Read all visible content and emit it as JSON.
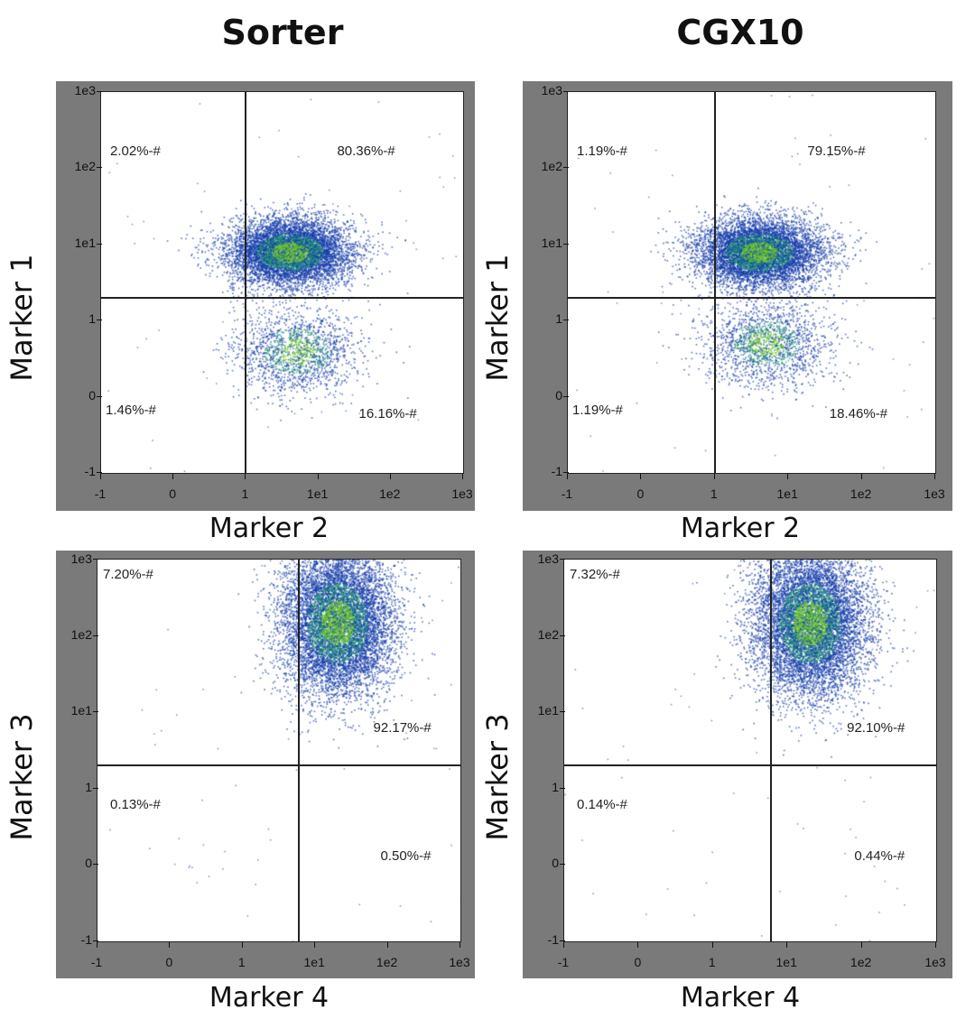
{
  "columns": [
    "Sorter",
    "CGX10"
  ],
  "chart_data": [
    {
      "type": "scatter",
      "instrument": "Sorter",
      "xlabel": "Marker 2",
      "ylabel": "Marker 1",
      "x_ticks": [
        "-1",
        "0",
        "1",
        "1e1",
        "1e2",
        "1e3"
      ],
      "y_ticks": [
        "-1",
        "0",
        "1",
        "1e1",
        "1e2",
        "1e3"
      ],
      "gate": {
        "x": 1,
        "y": 2
      },
      "quadrants": {
        "upper_left": "2.02%-#",
        "upper_right": "80.36%-#",
        "lower_left": "1.46%-#",
        "lower_right": "16.16%-#"
      },
      "clusters": [
        {
          "x": 4,
          "y": 8,
          "weight": 0.8
        },
        {
          "x": 5,
          "y": 0.6,
          "weight": 0.18
        }
      ]
    },
    {
      "type": "scatter",
      "instrument": "CGX10",
      "xlabel": "Marker 2",
      "ylabel": "Marker 1",
      "x_ticks": [
        "-1",
        "0",
        "1",
        "1e1",
        "1e2",
        "1e3"
      ],
      "y_ticks": [
        "-1",
        "0",
        "1",
        "1e1",
        "1e2",
        "1e3"
      ],
      "gate": {
        "x": 1,
        "y": 2
      },
      "quadrants": {
        "upper_left": "1.19%-#",
        "upper_right": "79.15%-#",
        "lower_left": "1.19%-#",
        "lower_right": "18.46%-#"
      },
      "clusters": [
        {
          "x": 4,
          "y": 8,
          "weight": 0.79
        },
        {
          "x": 5,
          "y": 0.7,
          "weight": 0.19
        }
      ]
    },
    {
      "type": "scatter",
      "instrument": "Sorter",
      "xlabel": "Marker 4",
      "ylabel": "Marker 3",
      "x_ticks": [
        "-1",
        "0",
        "1",
        "1e1",
        "1e2",
        "1e3"
      ],
      "y_ticks": [
        "-1",
        "0",
        "1",
        "1e1",
        "1e2",
        "1e3"
      ],
      "gate": {
        "x": 6,
        "y": 2
      },
      "quadrants": {
        "upper_left": "7.20%-#",
        "upper_right": "92.17%-#",
        "lower_left": "0.13%-#",
        "lower_right": "0.50%-#"
      },
      "clusters": [
        {
          "x": 20,
          "y": 150,
          "weight": 0.99
        }
      ]
    },
    {
      "type": "scatter",
      "instrument": "CGX10",
      "xlabel": "Marker 4",
      "ylabel": "Marker 3",
      "x_ticks": [
        "-1",
        "0",
        "1",
        "1e1",
        "1e2",
        "1e3"
      ],
      "y_ticks": [
        "-1",
        "0",
        "1",
        "1e1",
        "1e2",
        "1e3"
      ],
      "gate": {
        "x": 6,
        "y": 2
      },
      "quadrants": {
        "upper_left": "7.32%-#",
        "upper_right": "92.10%-#",
        "lower_left": "0.14%-#",
        "lower_right": "0.44%-#"
      },
      "clusters": [
        {
          "x": 20,
          "y": 150,
          "weight": 0.99
        }
      ]
    }
  ]
}
